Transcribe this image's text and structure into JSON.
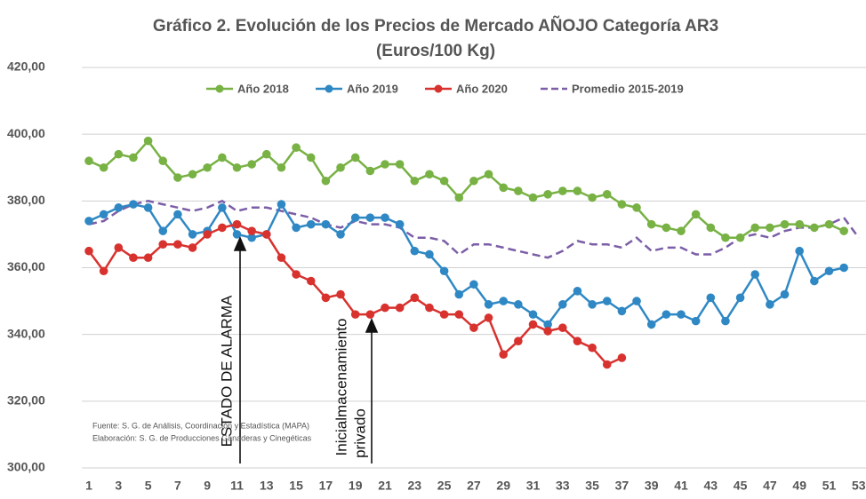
{
  "chart_data": {
    "type": "line",
    "title": "Gráfico 2. Evolución de los Precios de Mercado AÑOJO Categoría AR3",
    "subtitle": "(Euros/100 Kg)",
    "categories": [
      1,
      null,
      3,
      null,
      5,
      null,
      7,
      null,
      9,
      null,
      11,
      null,
      13,
      null,
      15,
      null,
      17,
      null,
      19,
      null,
      21,
      null,
      23,
      null,
      25,
      null,
      27,
      null,
      29,
      null,
      31,
      null,
      33,
      null,
      35,
      null,
      37,
      null,
      39,
      null,
      41,
      null,
      43,
      null,
      45,
      null,
      47,
      null,
      49,
      null,
      51,
      null,
      53
    ],
    "ylim": [
      300,
      420
    ],
    "yticks": [
      {
        "value": 300,
        "label": "300,00"
      },
      {
        "value": 320,
        "label": "320,00"
      },
      {
        "value": 340,
        "label": "340,00"
      },
      {
        "value": 360,
        "label": "360,00"
      },
      {
        "value": 380,
        "label": "380,00"
      },
      {
        "value": 400,
        "label": "400,00"
      },
      {
        "value": 420,
        "label": "420,00"
      }
    ],
    "grid": true,
    "legend": "top",
    "series": [
      {
        "name": "Año 2018",
        "color": "#78b144",
        "dashed": false,
        "markers": true,
        "values": [
          392,
          390,
          394,
          393,
          398,
          392,
          387,
          388,
          390,
          393,
          390,
          391,
          394,
          390,
          396,
          393,
          386,
          390,
          393,
          389,
          391,
          391,
          386,
          388,
          386,
          381,
          386,
          388,
          384,
          383,
          381,
          382,
          383,
          383,
          381,
          382,
          379,
          378,
          373,
          372,
          371,
          376,
          372,
          369,
          369,
          372,
          372,
          373,
          373,
          372,
          373,
          371,
          null
        ]
      },
      {
        "name": "Año 2019",
        "color": "#2f88c4",
        "dashed": false,
        "markers": true,
        "values": [
          374,
          376,
          378,
          379,
          378,
          371,
          376,
          370,
          371,
          378,
          370,
          369,
          370,
          379,
          372,
          373,
          373,
          370,
          375,
          375,
          375,
          373,
          365,
          364,
          359,
          352,
          355,
          349,
          350,
          349,
          346,
          343,
          349,
          353,
          349,
          350,
          347,
          350,
          343,
          346,
          346,
          344,
          351,
          344,
          351,
          358,
          349,
          352,
          365,
          356,
          359,
          360,
          null
        ]
      },
      {
        "name": "Año 2020",
        "color": "#d8322f",
        "dashed": false,
        "markers": true,
        "values": [
          365,
          359,
          366,
          363,
          363,
          367,
          367,
          366,
          370,
          372,
          373,
          371,
          370,
          363,
          358,
          356,
          351,
          352,
          346,
          346,
          348,
          348,
          351,
          348,
          346,
          346,
          342,
          345,
          334,
          338,
          343,
          341,
          342,
          338,
          336,
          331,
          333,
          null,
          null,
          null,
          null,
          null,
          null,
          null,
          null,
          null,
          null,
          null,
          null,
          null,
          null,
          null,
          null
        ]
      },
      {
        "name": "Promedio 2015-2019",
        "color": "#7b5ea7",
        "dashed": true,
        "markers": false,
        "values": [
          373,
          374,
          377,
          379,
          380,
          379,
          378,
          377,
          378,
          380,
          377,
          378,
          378,
          377,
          376,
          375,
          373,
          372,
          374,
          373,
          373,
          372,
          369,
          369,
          368,
          364,
          367,
          367,
          366,
          365,
          364,
          363,
          365,
          368,
          367,
          367,
          366,
          369,
          365,
          366,
          366,
          364,
          364,
          366,
          369,
          370,
          369,
          371,
          372,
          372,
          373,
          375,
          369
        ]
      }
    ],
    "annotations": [
      "ESTADO DE ALARMA",
      "Inicialmacenamiento",
      "privado"
    ],
    "notes": [
      "Fuente: S. G. de Análisis, Coordinación y Estadística (MAPA)",
      "Elaboración: S. G. de Producciones Ganaderas y Cinegéticas"
    ]
  }
}
